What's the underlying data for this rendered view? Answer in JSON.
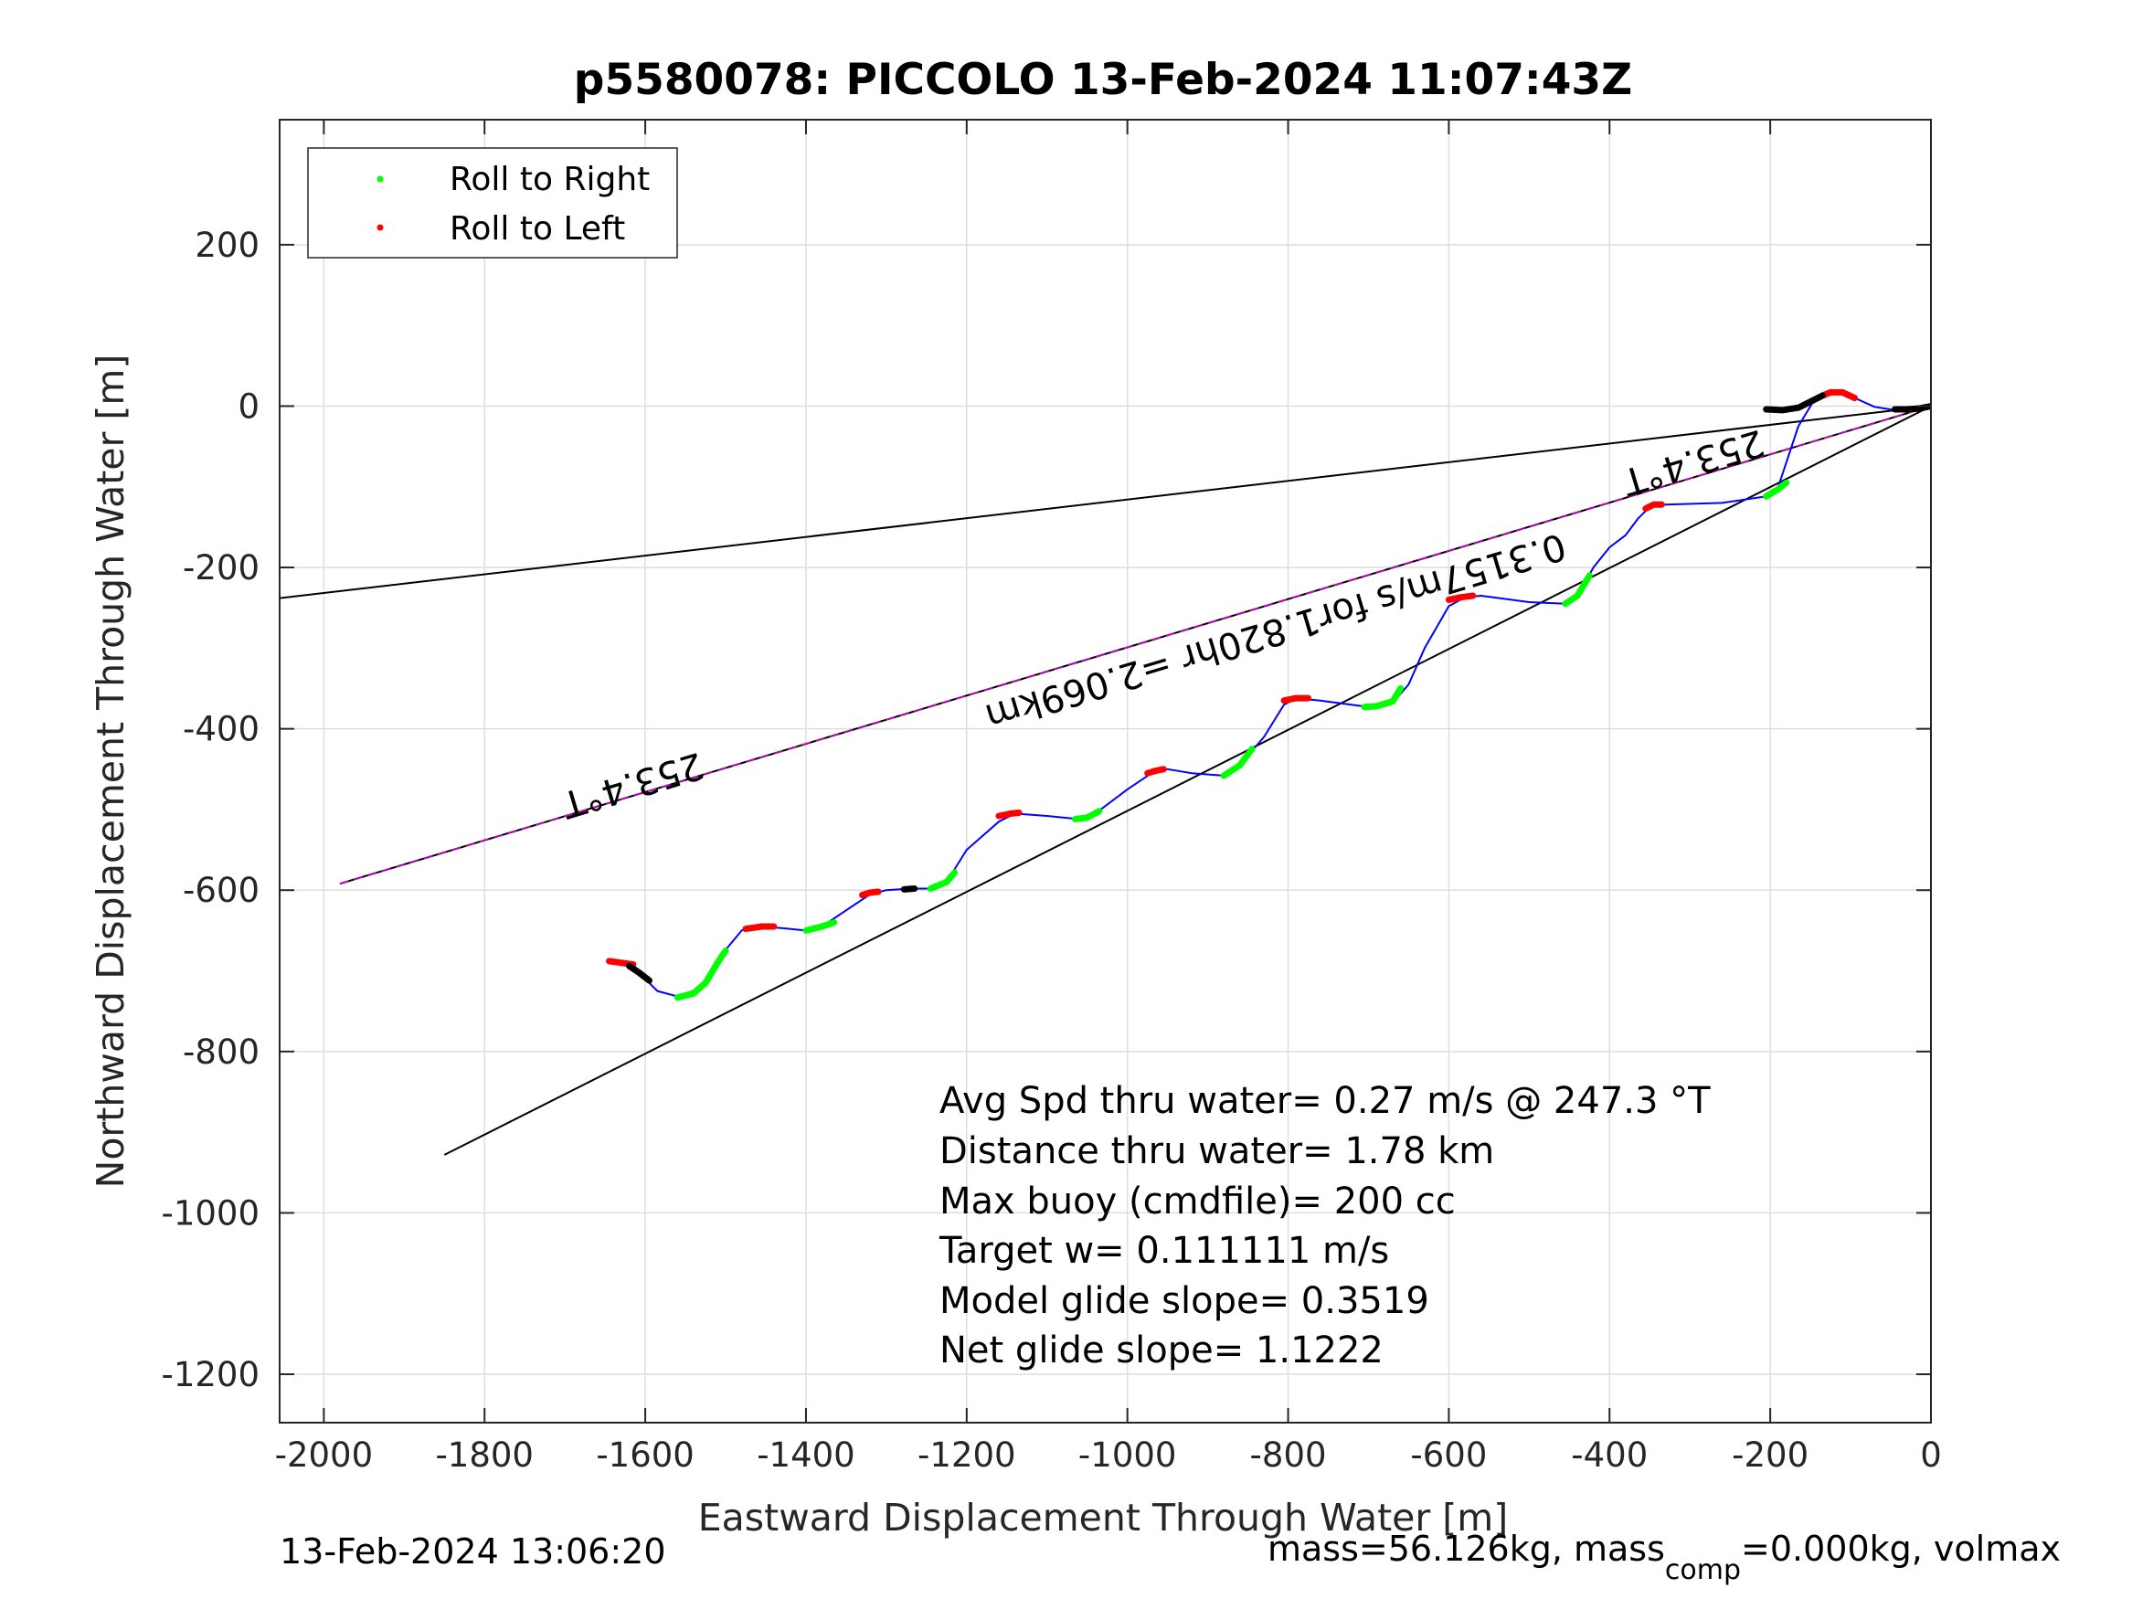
{
  "chart_data": {
    "type": "line",
    "title": "p5580078: PICCOLO 13-Feb-2024 11:07:43Z",
    "xlabel": "Eastward Displacement Through Water [m]",
    "ylabel": "Northward Displacement Through Water [m]",
    "xlim": [
      -2055,
      0
    ],
    "ylim": [
      -1260,
      355
    ],
    "xticks": [
      -2000,
      -1800,
      -1600,
      -1400,
      -1200,
      -1000,
      -800,
      -600,
      -400,
      -200,
      0
    ],
    "yticks": [
      200,
      0,
      -200,
      -400,
      -600,
      -800,
      -1000,
      -1200
    ],
    "grid": true,
    "legend": {
      "placement": "top-left",
      "entries": [
        {
          "label": "Roll to Right",
          "color": "#00ff00"
        },
        {
          "label": "Roll to Left",
          "color": "#ff0000"
        }
      ]
    },
    "series": [
      {
        "kind": "track",
        "color": "#0000ff",
        "points": [
          [
            0,
            0
          ],
          [
            -20,
            -4
          ],
          [
            -45,
            -5
          ],
          [
            -70,
            -1
          ],
          [
            -95,
            10
          ],
          [
            -110,
            17
          ],
          [
            -125,
            17
          ],
          [
            -145,
            8
          ],
          [
            -165,
            -25
          ],
          [
            -180,
            -70
          ],
          [
            -190,
            -100
          ],
          [
            -205,
            -112
          ],
          [
            -260,
            -120
          ],
          [
            -330,
            -122
          ],
          [
            -350,
            -125
          ],
          [
            -365,
            -140
          ],
          [
            -380,
            -160
          ],
          [
            -400,
            -175
          ],
          [
            -420,
            -200
          ],
          [
            -440,
            -235
          ],
          [
            -455,
            -245
          ],
          [
            -500,
            -243
          ],
          [
            -560,
            -235
          ],
          [
            -580,
            -237
          ],
          [
            -600,
            -248
          ],
          [
            -630,
            -300
          ],
          [
            -650,
            -345
          ],
          [
            -670,
            -368
          ],
          [
            -700,
            -373
          ],
          [
            -760,
            -365
          ],
          [
            -790,
            -362
          ],
          [
            -805,
            -370
          ],
          [
            -830,
            -410
          ],
          [
            -860,
            -445
          ],
          [
            -880,
            -458
          ],
          [
            -920,
            -455
          ],
          [
            -950,
            -450
          ],
          [
            -970,
            -455
          ],
          [
            -1000,
            -475
          ],
          [
            -1040,
            -505
          ],
          [
            -1060,
            -512
          ],
          [
            -1100,
            -508
          ],
          [
            -1140,
            -505
          ],
          [
            -1160,
            -515
          ],
          [
            -1200,
            -550
          ],
          [
            -1225,
            -590
          ],
          [
            -1245,
            -598
          ],
          [
            -1270,
            -598
          ],
          [
            -1300,
            -600
          ],
          [
            -1320,
            -605
          ],
          [
            -1350,
            -625
          ],
          [
            -1380,
            -645
          ],
          [
            -1400,
            -650
          ],
          [
            -1430,
            -647
          ],
          [
            -1460,
            -645
          ],
          [
            -1480,
            -650
          ],
          [
            -1505,
            -680
          ],
          [
            -1525,
            -715
          ],
          [
            -1555,
            -733
          ],
          [
            -1585,
            -725
          ],
          [
            -1605,
            -705
          ],
          [
            -1625,
            -692
          ],
          [
            -1640,
            -688
          ]
        ]
      },
      {
        "kind": "roll-right",
        "color": "#00ff00",
        "segments": [
          [
            [
              -180,
              -95
            ],
            [
              -190,
              -103
            ],
            [
              -205,
              -112
            ]
          ],
          [
            [
              -425,
              -210
            ],
            [
              -440,
              -235
            ],
            [
              -455,
              -245
            ]
          ],
          [
            [
              -660,
              -350
            ],
            [
              -670,
              -366
            ],
            [
              -690,
              -372
            ],
            [
              -705,
              -373
            ]
          ],
          [
            [
              -845,
              -425
            ],
            [
              -860,
              -445
            ],
            [
              -880,
              -458
            ]
          ],
          [
            [
              -1035,
              -502
            ],
            [
              -1050,
              -510
            ],
            [
              -1065,
              -512
            ]
          ],
          [
            [
              -1215,
              -578
            ],
            [
              -1225,
              -590
            ],
            [
              -1245,
              -598
            ]
          ],
          [
            [
              -1365,
              -640
            ],
            [
              -1380,
              -645
            ],
            [
              -1400,
              -650
            ]
          ],
          [
            [
              -1500,
              -675
            ],
            [
              -1510,
              -690
            ],
            [
              -1525,
              -715
            ],
            [
              -1540,
              -728
            ],
            [
              -1560,
              -733
            ]
          ]
        ]
      },
      {
        "kind": "roll-left",
        "color": "#ff0000",
        "segments": [
          [
            [
              -95,
              10
            ],
            [
              -110,
              17
            ],
            [
              -125,
              17
            ],
            [
              -135,
              13
            ]
          ],
          [
            [
              -335,
              -122
            ],
            [
              -345,
              -122
            ],
            [
              -355,
              -127
            ]
          ],
          [
            [
              -570,
              -235
            ],
            [
              -585,
              -237
            ],
            [
              -600,
              -240
            ]
          ],
          [
            [
              -775,
              -362
            ],
            [
              -790,
              -362
            ],
            [
              -805,
              -365
            ]
          ],
          [
            [
              -955,
              -450
            ],
            [
              -965,
              -452
            ],
            [
              -975,
              -455
            ]
          ],
          [
            [
              -1135,
              -504
            ],
            [
              -1145,
              -505
            ],
            [
              -1160,
              -508
            ]
          ],
          [
            [
              -1310,
              -602
            ],
            [
              -1320,
              -603
            ],
            [
              -1330,
              -606
            ]
          ],
          [
            [
              -1440,
              -645
            ],
            [
              -1455,
              -645
            ],
            [
              -1475,
              -648
            ]
          ],
          [
            [
              -1615,
              -692
            ],
            [
              -1630,
              -690
            ],
            [
              -1645,
              -688
            ]
          ]
        ]
      },
      {
        "kind": "not-rolling",
        "color": "#000000",
        "segments": [
          [
            [
              -135,
              13
            ],
            [
              -145,
              8
            ],
            [
              -165,
              -2
            ],
            [
              -185,
              -5
            ],
            [
              -205,
              -4
            ]
          ],
          [
            [
              0,
              0
            ],
            [
              -15,
              -3
            ],
            [
              -30,
              -4
            ],
            [
              -45,
              -4
            ]
          ],
          [
            [
              -1265,
              -598
            ],
            [
              -1278,
              -599
            ]
          ],
          [
            [
              -1595,
              -712
            ],
            [
              -1608,
              -702
            ],
            [
              -1620,
              -694
            ]
          ]
        ]
      }
    ],
    "reference_lines": [
      {
        "color": "#000000",
        "points": [
          [
            0,
            0
          ],
          [
            -2055,
            -238
          ]
        ]
      },
      {
        "color": "#000000",
        "points": [
          [
            0,
            0
          ],
          [
            -1850,
            -928
          ]
        ]
      },
      {
        "color": "#000000",
        "points": [
          [
            0,
            0
          ],
          [
            -1980,
            -592
          ]
        ]
      },
      {
        "color": "#cc00cc",
        "points": [
          [
            0,
            0
          ],
          [
            -1980,
            -592
          ]
        ]
      }
    ],
    "line_annotations": [
      {
        "text": "253.4°T",
        "x": -1620,
        "y": -455,
        "rotation": 163.3
      },
      {
        "text": "0.3157m/s for1.820hr =2.069km",
        "x": -820,
        "y": -265,
        "rotation": 163.3
      },
      {
        "text": "253.4°T",
        "x": -300,
        "y": -55,
        "rotation": 163.3
      }
    ],
    "stats_text": [
      "Avg Spd thru water=  0.27 m/s @ 247.3 °T",
      "Distance thru water=  1.78 km",
      "Max buoy (cmdfile)= 200 cc",
      "Target w= 0.111111 m/s",
      "Model glide slope= 0.3519",
      "Net glide slope= 1.1222"
    ]
  },
  "footer": {
    "timestamp": "13-Feb-2024 13:06:20",
    "mass_main": "mass=56.126kg, mass",
    "mass_sub": "comp",
    "mass_rest": "=0.000kg, volmax"
  }
}
